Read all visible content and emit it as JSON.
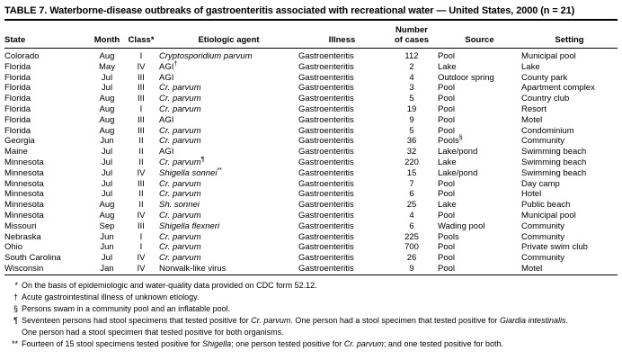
{
  "title": "TABLE 7. Waterborne-disease outbreaks of gastroenteritis associated with recreational water — United States, 2000 (n = 21)",
  "table": {
    "columns": {
      "state": "State",
      "month": "Month",
      "class": "Class*",
      "agent": "Etiologic agent",
      "illness": "Illness",
      "cases_line1": "Number",
      "cases_line2": "of cases",
      "source": "Source",
      "setting": "Setting"
    },
    "rows": [
      {
        "state": "Colorado",
        "month": "Aug",
        "class": "I",
        "agent": "Cryptosporidium parvum",
        "agent_italic": true,
        "agent_sup": "",
        "illness": "Gastroenteritis",
        "cases": "112",
        "source": "Pool",
        "source_sup": "",
        "setting": "Municipal pool"
      },
      {
        "state": "Florida",
        "month": "May",
        "class": "IV",
        "agent": "AGI",
        "agent_italic": false,
        "agent_sup": "†",
        "illness": "Gastroenteritis",
        "cases": "2",
        "source": "Lake",
        "source_sup": "",
        "setting": "Lake"
      },
      {
        "state": "Florida",
        "month": "Jul",
        "class": "III",
        "agent": "AGI",
        "agent_italic": false,
        "agent_sup": "",
        "illness": "Gastroenteritis",
        "cases": "4",
        "source": "Outdoor spring",
        "source_sup": "",
        "setting": "County park"
      },
      {
        "state": "Florida",
        "month": "Jul",
        "class": "III",
        "agent": "Cr. parvum",
        "agent_italic": true,
        "agent_sup": "",
        "illness": "Gastroenteritis",
        "cases": "3",
        "source": "Pool",
        "source_sup": "",
        "setting": "Apartment complex"
      },
      {
        "state": "Florida",
        "month": "Aug",
        "class": "III",
        "agent": "Cr. parvum",
        "agent_italic": true,
        "agent_sup": "",
        "illness": "Gastroenteritis",
        "cases": "5",
        "source": "Pool",
        "source_sup": "",
        "setting": "Country club"
      },
      {
        "state": "Florida",
        "month": "Aug",
        "class": "I",
        "agent": "Cr. parvum",
        "agent_italic": true,
        "agent_sup": "",
        "illness": "Gastroenteritis",
        "cases": "19",
        "source": "Pool",
        "source_sup": "",
        "setting": "Resort"
      },
      {
        "state": "Florida",
        "month": "Aug",
        "class": "III",
        "agent": "AGI",
        "agent_italic": false,
        "agent_sup": "",
        "illness": "Gastroenteritis",
        "cases": "9",
        "source": "Pool",
        "source_sup": "",
        "setting": "Motel"
      },
      {
        "state": "Florida",
        "month": "Aug",
        "class": "III",
        "agent": "Cr. parvum",
        "agent_italic": true,
        "agent_sup": "",
        "illness": "Gastroenteritis",
        "cases": "5",
        "source": "Pool",
        "source_sup": "",
        "setting": "Condominium"
      },
      {
        "state": "Georgia",
        "month": "Jun",
        "class": "II",
        "agent": "Cr. parvum",
        "agent_italic": true,
        "agent_sup": "",
        "illness": "Gastroenteritis",
        "cases": "36",
        "source": "Pools",
        "source_sup": "§",
        "setting": "Community"
      },
      {
        "state": "Maine",
        "month": "Jul",
        "class": "II",
        "agent": "AGI",
        "agent_italic": false,
        "agent_sup": "",
        "illness": "Gastroenteritis",
        "cases": "32",
        "source": "Lake/pond",
        "source_sup": "",
        "setting": "Swimming beach"
      },
      {
        "state": "Minnesota",
        "month": "Jul",
        "class": "II",
        "agent": "Cr. parvum",
        "agent_italic": true,
        "agent_sup": "¶",
        "illness": "Gastroenteritis",
        "cases": "220",
        "source": "Lake",
        "source_sup": "",
        "setting": "Swimming beach"
      },
      {
        "state": "Minnesota",
        "month": "Jul",
        "class": "IV",
        "agent": "Shigella sonnei",
        "agent_italic": true,
        "agent_sup": "**",
        "illness": "Gastroenteritis",
        "cases": "15",
        "source": "Lake/pond",
        "source_sup": "",
        "setting": "Swimming beach"
      },
      {
        "state": "Minnesota",
        "month": "Jul",
        "class": "III",
        "agent": "Cr. parvum",
        "agent_italic": true,
        "agent_sup": "",
        "illness": "Gastroenteritis",
        "cases": "7",
        "source": "Pool",
        "source_sup": "",
        "setting": "Day camp"
      },
      {
        "state": "Minnesota",
        "month": "Jul",
        "class": "II",
        "agent": "Cr. parvum",
        "agent_italic": true,
        "agent_sup": "",
        "illness": "Gastroenteritis",
        "cases": "6",
        "source": "Pool",
        "source_sup": "",
        "setting": "Hotel"
      },
      {
        "state": "Minnesota",
        "month": "Aug",
        "class": "II",
        "agent": "Sh. sonnei",
        "agent_italic": true,
        "agent_sup": "",
        "illness": "Gastroenteritis",
        "cases": "25",
        "source": "Lake",
        "source_sup": "",
        "setting": "Public beach"
      },
      {
        "state": "Minnesota",
        "month": "Aug",
        "class": "IV",
        "agent": "Cr. parvum",
        "agent_italic": true,
        "agent_sup": "",
        "illness": "Gastroenteritis",
        "cases": "4",
        "source": "Pool",
        "source_sup": "",
        "setting": "Municipal pool"
      },
      {
        "state": "Missouri",
        "month": "Sep",
        "class": "III",
        "agent": "Shigella flexneri",
        "agent_italic": true,
        "agent_sup": "",
        "illness": "Gastroenteritis",
        "cases": "6",
        "source": "Wading pool",
        "source_sup": "",
        "setting": "Community"
      },
      {
        "state": "Nebraska",
        "month": "Jun",
        "class": "I",
        "agent": "Cr. parvum",
        "agent_italic": true,
        "agent_sup": "",
        "illness": "Gastroenteritis",
        "cases": "225",
        "source": "Pools",
        "source_sup": "",
        "setting": "Community"
      },
      {
        "state": "Ohio",
        "month": "Jun",
        "class": "I",
        "agent": "Cr. parvum",
        "agent_italic": true,
        "agent_sup": "",
        "illness": "Gastroenteritis",
        "cases": "700",
        "source": "Pool",
        "source_sup": "",
        "setting": "Private swim club"
      },
      {
        "state": "South Carolina",
        "month": "Jul",
        "class": "IV",
        "agent": "Cr. parvum",
        "agent_italic": true,
        "agent_sup": "",
        "illness": "Gastroenteritis",
        "cases": "26",
        "source": "Pool",
        "source_sup": "",
        "setting": "Community"
      },
      {
        "state": "Wisconsin",
        "month": "Jan",
        "class": "IV",
        "agent": "Norwalk-like virus",
        "agent_italic": false,
        "agent_sup": "",
        "illness": "Gastroenteritis",
        "cases": "9",
        "source": "Pool",
        "source_sup": "",
        "setting": "Motel"
      }
    ]
  },
  "footnotes": [
    {
      "symbol": "*",
      "segments": [
        {
          "t": "On the basis of epidemiologic and water-quality data provided on CDC form 52.12.",
          "i": false
        }
      ]
    },
    {
      "symbol": "†",
      "segments": [
        {
          "t": "Acute gastrointestinal illness of unknown etiology.",
          "i": false
        }
      ]
    },
    {
      "symbol": "§",
      "segments": [
        {
          "t": "Persons swam in a community pool and an inflatable pool.",
          "i": false
        }
      ]
    },
    {
      "symbol": "¶",
      "segments": [
        {
          "t": "Seventeen persons had stool specimens that tested positive for ",
          "i": false
        },
        {
          "t": "Cr. parvum",
          "i": true
        },
        {
          "t": ". One person had a stool specimen that tested positive for ",
          "i": false
        },
        {
          "t": "Giardia intestinalis",
          "i": true
        },
        {
          "t": ".",
          "i": false,
          "br": true
        },
        {
          "t": "One person had a stool specimen that tested positive for both organisms.",
          "i": false
        }
      ]
    },
    {
      "symbol": "**",
      "segments": [
        {
          "t": "Fourteen of 15 stool specimens tested positive for ",
          "i": false
        },
        {
          "t": "Shigella",
          "i": true
        },
        {
          "t": "; one person tested positive for ",
          "i": false
        },
        {
          "t": "Cr. parvum",
          "i": true
        },
        {
          "t": "; and one tested positive for both.",
          "i": false
        }
      ]
    }
  ]
}
